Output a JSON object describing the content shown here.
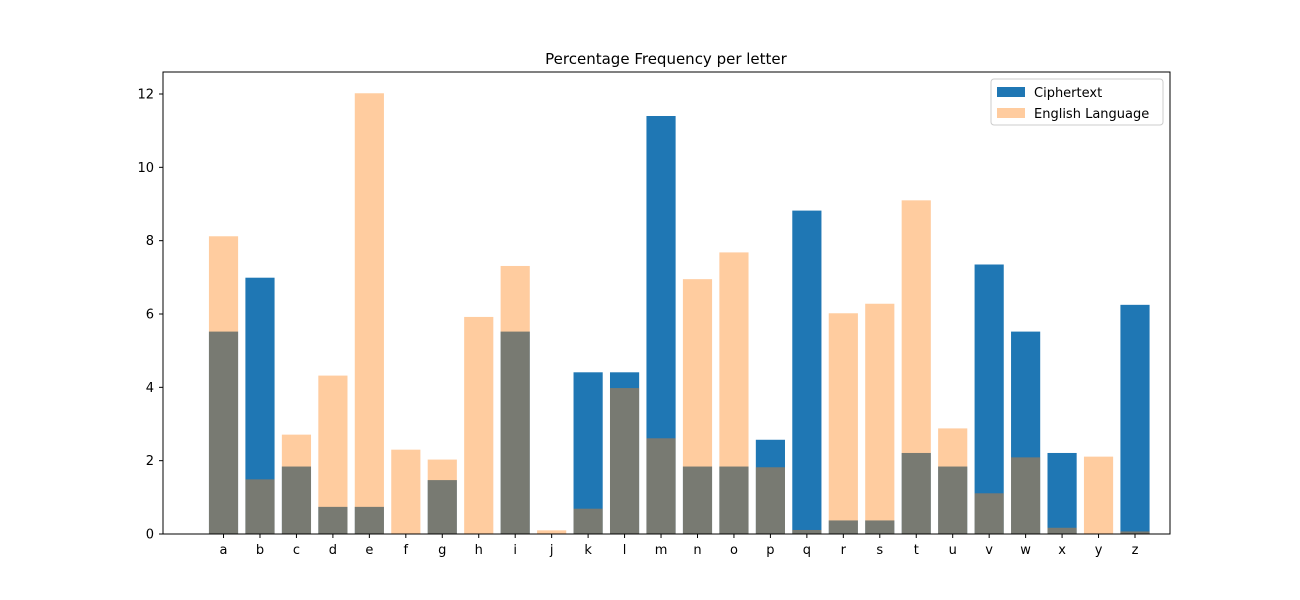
{
  "chart_data": {
    "type": "bar",
    "title": "Percentage Frequency per letter",
    "xlabel": "",
    "ylabel": "",
    "ylim": [
      0,
      12.6
    ],
    "yticks": [
      0,
      2,
      4,
      6,
      8,
      10,
      12
    ],
    "grid": false,
    "legend_position": "top-right",
    "overlay": true,
    "categories": [
      "a",
      "b",
      "c",
      "d",
      "e",
      "f",
      "g",
      "h",
      "i",
      "j",
      "k",
      "l",
      "m",
      "n",
      "o",
      "p",
      "q",
      "r",
      "s",
      "t",
      "u",
      "v",
      "w",
      "x",
      "y",
      "z"
    ],
    "series": [
      {
        "name": "Ciphertext",
        "color": "#1f77b4",
        "alpha": 1.0,
        "values": [
          5.52,
          6.99,
          1.84,
          0.74,
          0.74,
          0.0,
          1.47,
          0.0,
          5.52,
          0.0,
          4.41,
          4.41,
          11.4,
          1.84,
          1.84,
          2.57,
          8.82,
          0.37,
          0.37,
          2.21,
          1.84,
          7.35,
          5.52,
          2.21,
          0.0,
          6.25
        ]
      },
      {
        "name": "English Language",
        "color": "#ff7f0e",
        "alpha": 0.4,
        "values": [
          8.12,
          1.49,
          2.71,
          4.32,
          12.02,
          2.3,
          2.03,
          5.92,
          7.31,
          0.1,
          0.69,
          3.98,
          2.61,
          6.95,
          7.68,
          1.82,
          0.11,
          6.02,
          6.28,
          9.1,
          2.88,
          1.11,
          2.09,
          0.17,
          2.11,
          0.07
        ]
      }
    ]
  }
}
